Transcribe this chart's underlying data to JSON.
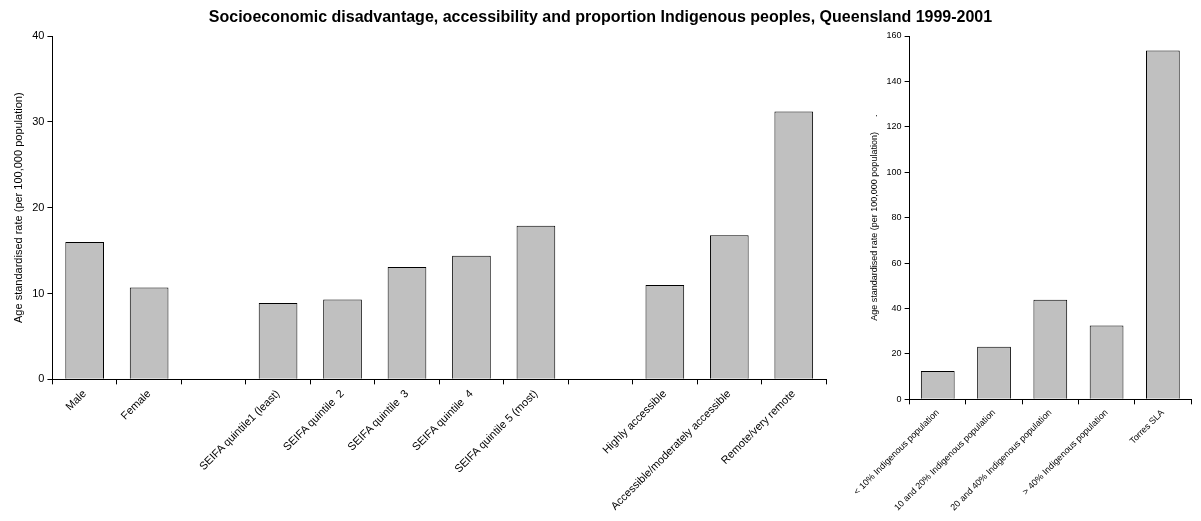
{
  "chart_data": [
    {
      "type": "bar",
      "title": "Socioeconomic disadvantage, accessibility and proportion Indigenous peoples, Queensland 1999-2001",
      "ylabel": "Age standardised rate (per 100,000 population)",
      "categories": [
        "Male",
        "Female",
        null,
        "SEIFA quintile1 (least)",
        "SEIFA quintile  2",
        "SEIFA quintile  3",
        "SEIFA quintile  4",
        "SEIFA quintile 5 (most)",
        null,
        "Highly accessible",
        "Accessible/moderately accessible",
        "Remote/very remote"
      ],
      "values": [
        16.0,
        10.7,
        null,
        8.9,
        9.3,
        13.1,
        14.4,
        17.9,
        null,
        11.0,
        16.8,
        31.2
      ],
      "color": "#c0c0c0",
      "ylim": [
        0,
        40
      ],
      "yticks": [
        0,
        10,
        20,
        30,
        40
      ],
      "grid": false
    },
    {
      "type": "bar",
      "ylabel": "Age standardised rate (per 100,000 population)      .",
      "categories": [
        "< 10% Indigenous population",
        "10 and 20% Indigenous population",
        "20 and 40% Indigenous population",
        "> 40% Indigenous population",
        "Torres SLA"
      ],
      "values": [
        12.5,
        23.2,
        43.9,
        32.5,
        153.6
      ],
      "color": "#c0c0c0",
      "ylim": [
        0,
        160
      ],
      "yticks": [
        0,
        20,
        40,
        60,
        80,
        100,
        120,
        140,
        160
      ],
      "grid": false
    }
  ]
}
